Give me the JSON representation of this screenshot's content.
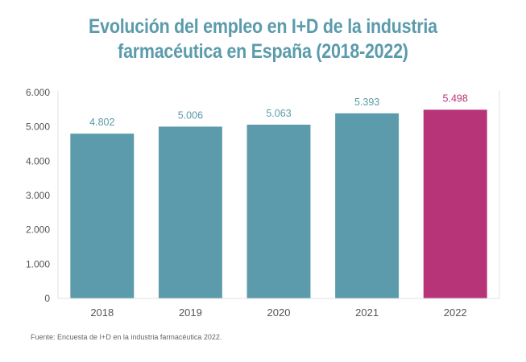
{
  "chart_data": {
    "type": "bar",
    "title": "Evolución del empleo en I+D de la industria farmacéutica en España (2018-2022)",
    "title_lines": [
      "Evolución del empleo en I+D de la industria",
      "farmacéutica en España (2018-2022)"
    ],
    "categories": [
      "2018",
      "2019",
      "2020",
      "2021",
      "2022"
    ],
    "values": [
      4802,
      5006,
      5063,
      5393,
      5498
    ],
    "data_labels": [
      "4.802",
      "5.006",
      "5.063",
      "5.393",
      "5.498"
    ],
    "highlight_index": 4,
    "xlabel": "",
    "ylabel": "",
    "ylim": [
      0,
      6000
    ],
    "yticks": [
      0,
      1000,
      2000,
      3000,
      4000,
      5000,
      6000
    ],
    "ytick_labels": [
      "0",
      "1.000",
      "2.000",
      "3.000",
      "4.000",
      "5.000",
      "6.000"
    ],
    "grid": false,
    "legend": "none",
    "colors": {
      "bar": "#5b9bab",
      "highlight": "#b83478",
      "title": "#5b9bab",
      "axis": "#e0e0e0"
    }
  },
  "source": "Fuente: Encuesta de I+D en la industria farmacéutica 2022."
}
